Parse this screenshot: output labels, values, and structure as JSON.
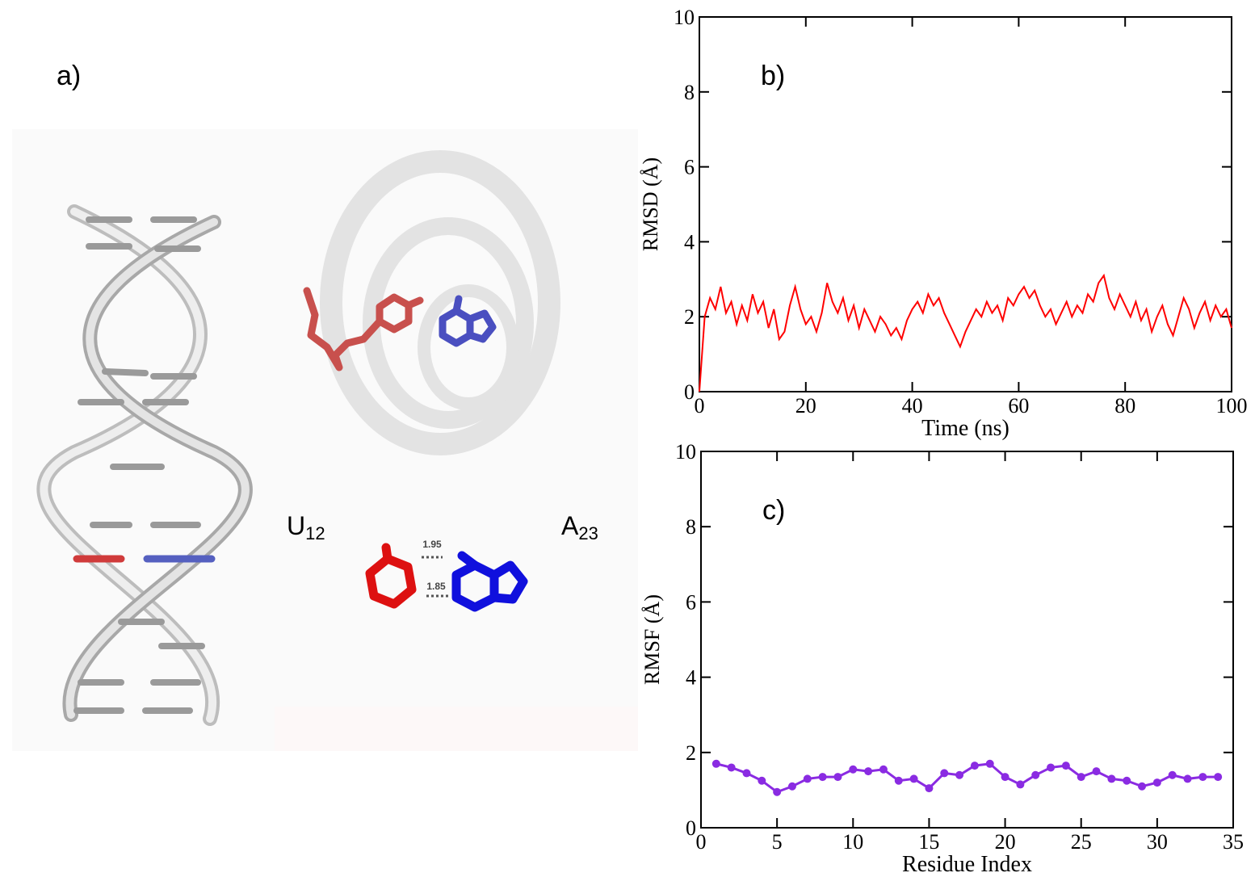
{
  "panel_a": {
    "label": "a)",
    "left_base": {
      "letter": "U",
      "index": "12"
    },
    "right_base": {
      "letter": "A",
      "index": "23"
    },
    "distances": [
      "1.95",
      "1.85"
    ]
  },
  "chart_data": [
    {
      "type": "line",
      "panel_label": "b)",
      "x_label": "Time (ns)",
      "y_label": "RMSD (Å)",
      "color": "#ff0000",
      "markers": false,
      "xlim": [
        0,
        100
      ],
      "xticks": [
        0,
        20,
        40,
        60,
        80,
        100
      ],
      "ylim": [
        0,
        10
      ],
      "yticks": [
        0,
        2,
        4,
        6,
        8,
        10
      ],
      "x": [
        0,
        1,
        2,
        3,
        4,
        5,
        6,
        7,
        8,
        9,
        10,
        11,
        12,
        13,
        14,
        15,
        16,
        17,
        18,
        19,
        20,
        21,
        22,
        23,
        24,
        25,
        26,
        27,
        28,
        29,
        30,
        31,
        32,
        33,
        34,
        35,
        36,
        37,
        38,
        39,
        40,
        41,
        42,
        43,
        44,
        45,
        46,
        47,
        48,
        49,
        50,
        51,
        52,
        53,
        54,
        55,
        56,
        57,
        58,
        59,
        60,
        61,
        62,
        63,
        64,
        65,
        66,
        67,
        68,
        69,
        70,
        71,
        72,
        73,
        74,
        75,
        76,
        77,
        78,
        79,
        80,
        81,
        82,
        83,
        84,
        85,
        86,
        87,
        88,
        89,
        90,
        91,
        92,
        93,
        94,
        95,
        96,
        97,
        98,
        99,
        100
      ],
      "values": [
        0.0,
        2.0,
        2.5,
        2.2,
        2.8,
        2.1,
        2.4,
        1.8,
        2.3,
        1.9,
        2.6,
        2.1,
        2.4,
        1.7,
        2.2,
        1.4,
        1.6,
        2.3,
        2.8,
        2.2,
        1.8,
        2.0,
        1.6,
        2.1,
        2.9,
        2.4,
        2.1,
        2.5,
        1.9,
        2.3,
        1.7,
        2.2,
        1.9,
        1.6,
        2.0,
        1.8,
        1.5,
        1.7,
        1.4,
        1.9,
        2.2,
        2.4,
        2.1,
        2.6,
        2.3,
        2.5,
        2.1,
        1.8,
        1.5,
        1.2,
        1.6,
        1.9,
        2.2,
        2.0,
        2.4,
        2.1,
        2.3,
        1.9,
        2.5,
        2.3,
        2.6,
        2.8,
        2.5,
        2.7,
        2.3,
        2.0,
        2.2,
        1.8,
        2.1,
        2.4,
        2.0,
        2.3,
        2.1,
        2.6,
        2.4,
        2.9,
        3.1,
        2.5,
        2.2,
        2.6,
        2.3,
        2.0,
        2.4,
        1.9,
        2.2,
        1.6,
        2.0,
        2.3,
        1.8,
        1.5,
        2.0,
        2.5,
        2.2,
        1.7,
        2.1,
        2.4,
        1.9,
        2.3,
        2.0,
        2.2,
        1.7
      ]
    },
    {
      "type": "line",
      "panel_label": "c)",
      "x_label": "Residue Index",
      "y_label": "RMSF (Å)",
      "color": "#8a2be2",
      "markers": true,
      "xlim": [
        0,
        35
      ],
      "xticks": [
        0,
        5,
        10,
        15,
        20,
        25,
        30,
        35
      ],
      "ylim": [
        0,
        10
      ],
      "yticks": [
        0,
        2,
        4,
        6,
        8,
        10
      ],
      "x": [
        1,
        2,
        3,
        4,
        5,
        6,
        7,
        8,
        9,
        10,
        11,
        12,
        13,
        14,
        15,
        16,
        17,
        18,
        19,
        20,
        21,
        22,
        23,
        24,
        25,
        26,
        27,
        28,
        29,
        30,
        31,
        32,
        33,
        34
      ],
      "values": [
        1.7,
        1.6,
        1.45,
        1.25,
        0.95,
        1.1,
        1.3,
        1.35,
        1.35,
        1.55,
        1.5,
        1.55,
        1.25,
        1.3,
        1.05,
        1.45,
        1.4,
        1.65,
        1.7,
        1.35,
        1.15,
        1.4,
        1.6,
        1.65,
        1.35,
        1.5,
        1.3,
        1.25,
        1.1,
        1.2,
        1.4,
        1.3,
        1.35,
        1.35
      ]
    }
  ]
}
